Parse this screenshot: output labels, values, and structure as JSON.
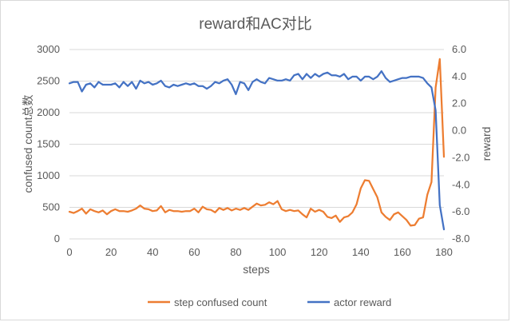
{
  "chart_data": {
    "type": "line",
    "title": "reward和AC对比",
    "xlabel": "steps",
    "ylabel_left": "confused count总数",
    "ylabel_right": "reward",
    "xlim": [
      0,
      180
    ],
    "ylim_left": [
      0,
      3000
    ],
    "ylim_right": [
      -8.0,
      6.0
    ],
    "x_ticks": [
      "0",
      "20",
      "40",
      "60",
      "80",
      "100",
      "120",
      "140",
      "160",
      "180"
    ],
    "y_ticks_left": [
      "0",
      "500",
      "1000",
      "1500",
      "2000",
      "2500",
      "3000"
    ],
    "y_ticks_right": [
      "-8.0",
      "-6.0",
      "-4.0",
      "-2.0",
      "0.0",
      "2.0",
      "4.0",
      "6.0"
    ],
    "grid": true,
    "legend_position": "bottom",
    "series": [
      {
        "name": "step confused count",
        "axis": "left",
        "color": "#ED7D31",
        "points": [
          [
            0,
            430
          ],
          [
            2,
            410
          ],
          [
            4,
            440
          ],
          [
            6,
            480
          ],
          [
            8,
            400
          ],
          [
            10,
            470
          ],
          [
            12,
            440
          ],
          [
            14,
            420
          ],
          [
            16,
            450
          ],
          [
            18,
            390
          ],
          [
            20,
            440
          ],
          [
            22,
            470
          ],
          [
            24,
            440
          ],
          [
            26,
            440
          ],
          [
            28,
            430
          ],
          [
            30,
            450
          ],
          [
            32,
            480
          ],
          [
            34,
            530
          ],
          [
            36,
            480
          ],
          [
            38,
            470
          ],
          [
            40,
            440
          ],
          [
            42,
            450
          ],
          [
            44,
            520
          ],
          [
            46,
            420
          ],
          [
            48,
            460
          ],
          [
            50,
            440
          ],
          [
            52,
            440
          ],
          [
            54,
            430
          ],
          [
            56,
            440
          ],
          [
            58,
            440
          ],
          [
            60,
            480
          ],
          [
            62,
            420
          ],
          [
            64,
            510
          ],
          [
            66,
            470
          ],
          [
            68,
            460
          ],
          [
            70,
            420
          ],
          [
            72,
            490
          ],
          [
            74,
            460
          ],
          [
            76,
            490
          ],
          [
            78,
            450
          ],
          [
            80,
            480
          ],
          [
            82,
            460
          ],
          [
            84,
            490
          ],
          [
            86,
            460
          ],
          [
            88,
            510
          ],
          [
            90,
            560
          ],
          [
            92,
            530
          ],
          [
            94,
            540
          ],
          [
            96,
            580
          ],
          [
            98,
            550
          ],
          [
            100,
            600
          ],
          [
            102,
            470
          ],
          [
            104,
            440
          ],
          [
            106,
            460
          ],
          [
            108,
            440
          ],
          [
            110,
            450
          ],
          [
            112,
            390
          ],
          [
            114,
            340
          ],
          [
            116,
            480
          ],
          [
            118,
            430
          ],
          [
            120,
            460
          ],
          [
            122,
            430
          ],
          [
            124,
            350
          ],
          [
            126,
            330
          ],
          [
            128,
            370
          ],
          [
            130,
            270
          ],
          [
            132,
            340
          ],
          [
            134,
            360
          ],
          [
            136,
            420
          ],
          [
            138,
            550
          ],
          [
            140,
            800
          ],
          [
            142,
            930
          ],
          [
            144,
            920
          ],
          [
            146,
            790
          ],
          [
            148,
            660
          ],
          [
            150,
            420
          ],
          [
            152,
            350
          ],
          [
            154,
            300
          ],
          [
            156,
            390
          ],
          [
            158,
            420
          ],
          [
            160,
            360
          ],
          [
            162,
            300
          ],
          [
            164,
            210
          ],
          [
            166,
            220
          ],
          [
            168,
            320
          ],
          [
            170,
            340
          ],
          [
            172,
            700
          ],
          [
            174,
            900
          ],
          [
            176,
            2400
          ],
          [
            178,
            2850
          ],
          [
            180,
            1300
          ]
        ]
      },
      {
        "name": "actor reward",
        "axis": "right",
        "color": "#4472C4",
        "points": [
          [
            0,
            3.5
          ],
          [
            2,
            3.6
          ],
          [
            4,
            3.6
          ],
          [
            6,
            2.9
          ],
          [
            8,
            3.4
          ],
          [
            10,
            3.5
          ],
          [
            12,
            3.2
          ],
          [
            14,
            3.6
          ],
          [
            16,
            3.4
          ],
          [
            18,
            3.4
          ],
          [
            20,
            3.4
          ],
          [
            22,
            3.5
          ],
          [
            24,
            3.2
          ],
          [
            26,
            3.6
          ],
          [
            28,
            3.3
          ],
          [
            30,
            3.6
          ],
          [
            32,
            3.1
          ],
          [
            34,
            3.7
          ],
          [
            36,
            3.5
          ],
          [
            38,
            3.6
          ],
          [
            40,
            3.4
          ],
          [
            42,
            3.5
          ],
          [
            44,
            3.7
          ],
          [
            46,
            3.3
          ],
          [
            48,
            3.2
          ],
          [
            50,
            3.4
          ],
          [
            52,
            3.3
          ],
          [
            54,
            3.4
          ],
          [
            56,
            3.5
          ],
          [
            58,
            3.4
          ],
          [
            60,
            3.5
          ],
          [
            62,
            3.3
          ],
          [
            64,
            3.3
          ],
          [
            66,
            3.1
          ],
          [
            68,
            3.3
          ],
          [
            70,
            3.6
          ],
          [
            72,
            3.5
          ],
          [
            74,
            3.7
          ],
          [
            76,
            3.8
          ],
          [
            78,
            3.4
          ],
          [
            80,
            2.7
          ],
          [
            82,
            3.6
          ],
          [
            84,
            3.5
          ],
          [
            86,
            3.0
          ],
          [
            88,
            3.6
          ],
          [
            90,
            3.8
          ],
          [
            92,
            3.6
          ],
          [
            94,
            3.5
          ],
          [
            96,
            3.9
          ],
          [
            98,
            3.8
          ],
          [
            100,
            3.7
          ],
          [
            102,
            3.7
          ],
          [
            104,
            3.8
          ],
          [
            106,
            3.7
          ],
          [
            108,
            4.1
          ],
          [
            110,
            4.2
          ],
          [
            112,
            3.8
          ],
          [
            114,
            4.2
          ],
          [
            116,
            3.9
          ],
          [
            118,
            4.2
          ],
          [
            120,
            4.0
          ],
          [
            122,
            4.2
          ],
          [
            124,
            4.3
          ],
          [
            126,
            4.1
          ],
          [
            128,
            4.1
          ],
          [
            130,
            4.0
          ],
          [
            132,
            4.2
          ],
          [
            134,
            3.8
          ],
          [
            136,
            4.0
          ],
          [
            138,
            4.0
          ],
          [
            140,
            3.7
          ],
          [
            142,
            4.0
          ],
          [
            144,
            4.0
          ],
          [
            146,
            3.8
          ],
          [
            148,
            4.0
          ],
          [
            150,
            4.4
          ],
          [
            152,
            3.9
          ],
          [
            154,
            3.6
          ],
          [
            156,
            3.7
          ],
          [
            158,
            3.8
          ],
          [
            160,
            3.9
          ],
          [
            162,
            3.9
          ],
          [
            164,
            4.0
          ],
          [
            166,
            4.0
          ],
          [
            168,
            4.0
          ],
          [
            170,
            3.9
          ],
          [
            172,
            3.5
          ],
          [
            174,
            3.2
          ],
          [
            176,
            1.5
          ],
          [
            178,
            -5.5
          ],
          [
            180,
            -7.3
          ]
        ]
      }
    ]
  }
}
